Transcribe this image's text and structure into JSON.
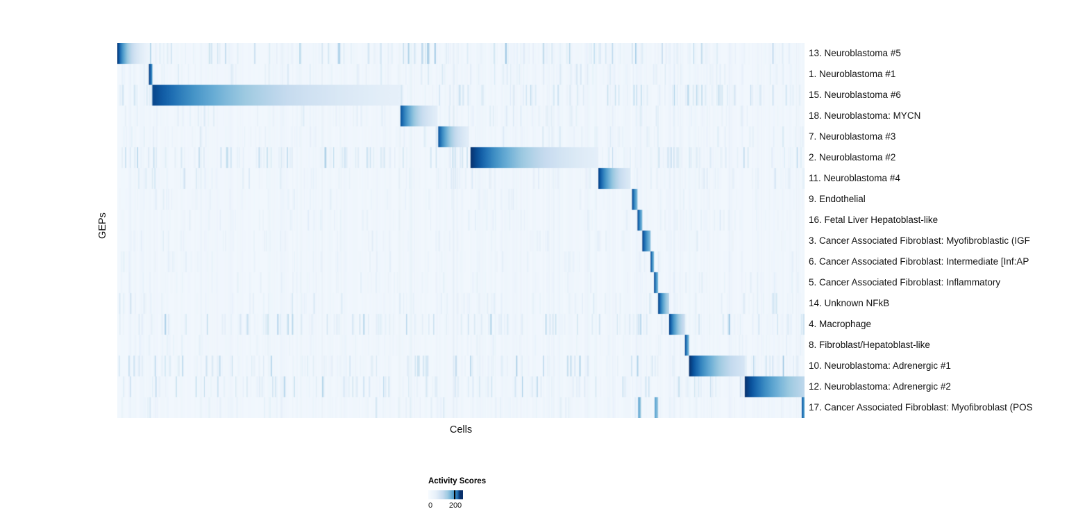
{
  "chart_data": {
    "type": "heatmap",
    "title": "",
    "xlabel": "Cells",
    "ylabel": "GEPs",
    "colormap": "Blues",
    "grid": false,
    "legend": {
      "title": "Activity Scores",
      "min_label": "0",
      "max_label": "200",
      "min_value": 0,
      "max_value": 200,
      "min_color": "#f7fbff",
      "max_color": "#08306b",
      "position": "bottom-left"
    },
    "x_axis_note": "individual cells, sorted by assigned program; each row shows a high-activity block (values fade from ~200 to ~0 within the block) forming a diagonal staircase",
    "rows": [
      {
        "label": "13. Neuroblastoma #5",
        "noise": 0.55,
        "blocks": [
          [
            0.0,
            0.047,
            1.0,
            3.0
          ]
        ]
      },
      {
        "label": "1. Neuroblastoma #1",
        "noise": 0.35,
        "blocks": [
          [
            0.046,
            0.051,
            1.0,
            0.5
          ]
        ]
      },
      {
        "label": "15. Neuroblastoma #6",
        "noise": 0.5,
        "blocks": [
          [
            0.051,
            0.412,
            0.92,
            2.4
          ]
        ]
      },
      {
        "label": "18. Neuroblastoma: MYCN",
        "noise": 0.3,
        "blocks": [
          [
            0.412,
            0.466,
            0.88,
            2.2
          ]
        ]
      },
      {
        "label": "7. Neuroblastoma #3",
        "noise": 0.3,
        "blocks": [
          [
            0.467,
            0.512,
            0.88,
            2.2
          ]
        ]
      },
      {
        "label": "2. Neuroblastoma #2",
        "noise": 0.6,
        "blocks": [
          [
            0.514,
            0.7,
            1.0,
            2.4
          ]
        ]
      },
      {
        "label": "11. Neuroblastoma #4",
        "noise": 0.4,
        "blocks": [
          [
            0.7,
            0.747,
            0.95,
            2.0
          ]
        ]
      },
      {
        "label": "9. Endothelial",
        "noise": 0.2,
        "blocks": [
          [
            0.749,
            0.757,
            0.95,
            0.8
          ]
        ]
      },
      {
        "label": "16. Fetal Liver Hepatoblast-like",
        "noise": 0.2,
        "blocks": [
          [
            0.757,
            0.764,
            0.95,
            0.8
          ]
        ]
      },
      {
        "label": "3. Cancer Associated Fibroblast: Myofibroblastic (IGF",
        "noise": 0.25,
        "blocks": [
          [
            0.764,
            0.776,
            0.95,
            0.8
          ]
        ]
      },
      {
        "label": "6. Cancer Associated Fibroblast: Intermediate [Inf:AP",
        "noise": 0.2,
        "blocks": [
          [
            0.776,
            0.781,
            0.95,
            0.8
          ]
        ]
      },
      {
        "label": "5. Cancer Associated Fibroblast: Inflammatory",
        "noise": 0.2,
        "blocks": [
          [
            0.781,
            0.787,
            0.95,
            0.8
          ]
        ]
      },
      {
        "label": "14. Unknown NFkB",
        "noise": 0.35,
        "blocks": [
          [
            0.787,
            0.803,
            0.95,
            1.2
          ]
        ]
      },
      {
        "label": "4. Macrophage",
        "noise": 0.45,
        "blocks": [
          [
            0.803,
            0.826,
            0.95,
            1.5
          ]
        ]
      },
      {
        "label": "8. Fibroblast/Hepatoblast-like",
        "noise": 0.2,
        "blocks": [
          [
            0.826,
            0.832,
            0.95,
            0.8
          ]
        ]
      },
      {
        "label": "10. Neuroblastoma: Adrenergic #1",
        "noise": 0.5,
        "blocks": [
          [
            0.832,
            0.913,
            1.0,
            1.8
          ]
        ]
      },
      {
        "label": "12. Neuroblastoma: Adrenergic #2",
        "noise": 0.45,
        "blocks": [
          [
            0.913,
            1.0,
            1.0,
            1.3
          ]
        ]
      },
      {
        "label": "17. Cancer Associated Fibroblast: Myofibroblast (POS",
        "noise": 0.25,
        "blocks": [
          [
            0.758,
            0.762,
            0.6,
            0.5
          ],
          [
            0.782,
            0.787,
            0.6,
            0.5
          ],
          [
            0.996,
            1.0,
            0.9,
            0.5
          ]
        ]
      }
    ]
  }
}
